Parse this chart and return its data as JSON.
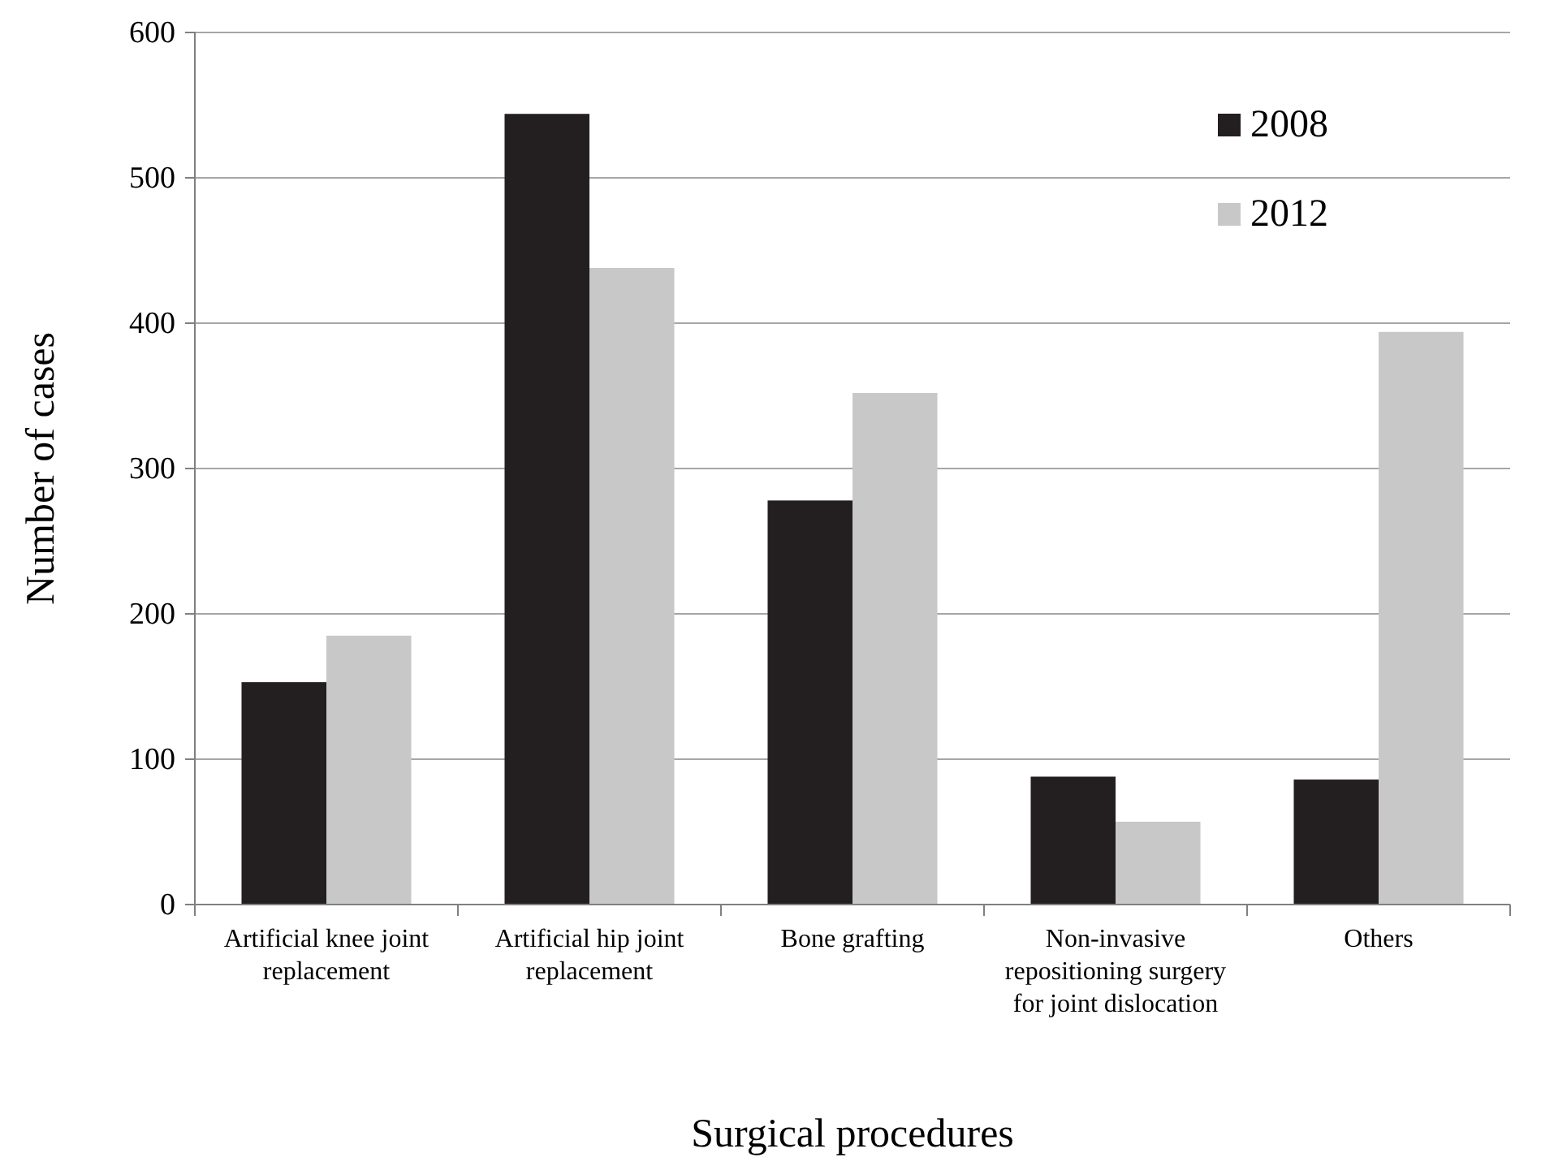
{
  "chart_data": {
    "type": "bar",
    "xlabel": "Surgical procedures",
    "ylabel": "Number of cases",
    "categories": [
      "Artificial knee joint replacement",
      "Artificial hip joint replacement",
      "Bone grafting",
      "Non-invasive repositioning surgery for joint dislocation",
      "Others"
    ],
    "series": [
      {
        "name": "2008",
        "color": "#231f20",
        "values": [
          153,
          544,
          278,
          88,
          86
        ]
      },
      {
        "name": "2012",
        "color": "#c8c8c8",
        "values": [
          185,
          438,
          352,
          57,
          394
        ]
      }
    ],
    "ylim": [
      0,
      600
    ],
    "yticks": [
      0,
      100,
      200,
      300,
      400,
      500,
      600
    ],
    "grid": "y",
    "legend": "top right"
  }
}
